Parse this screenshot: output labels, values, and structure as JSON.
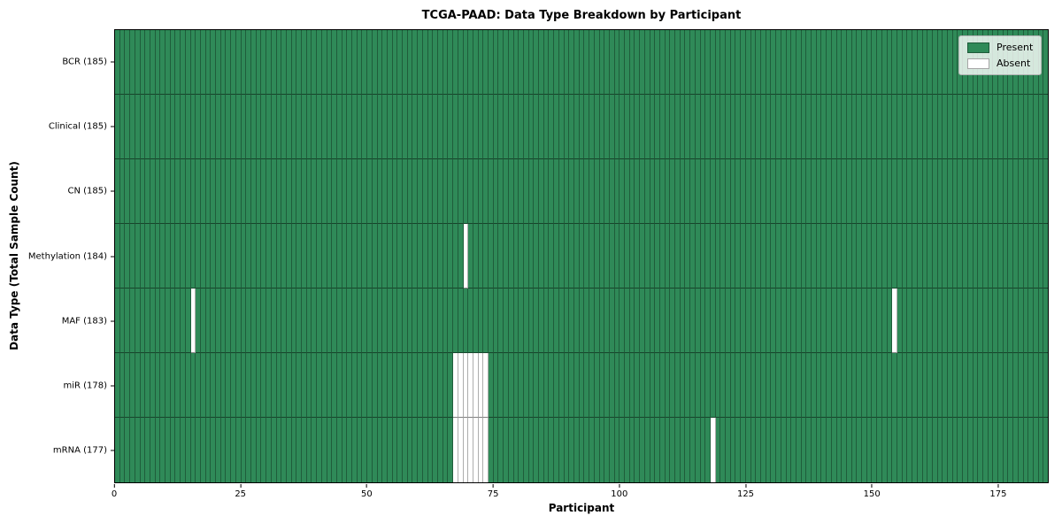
{
  "chart_data": {
    "type": "heatmap",
    "title": "TCGA-PAAD: Data Type Breakdown by Participant",
    "xlabel": "Participant",
    "ylabel": "Data Type (Total Sample Count)",
    "x_max": 185,
    "x_ticks": [
      0,
      25,
      50,
      75,
      100,
      125,
      150,
      175
    ],
    "n_participants": 185,
    "legend": {
      "present": "Present",
      "absent": "Absent"
    },
    "colors": {
      "present": "#2f8a58",
      "absent": "#ffffff"
    },
    "rows": [
      {
        "label": "BCR (185)",
        "data_type": "BCR",
        "present_count": 185,
        "missing_participants": []
      },
      {
        "label": "Clinical (185)",
        "data_type": "Clinical",
        "present_count": 185,
        "missing_participants": []
      },
      {
        "label": "CN (185)",
        "data_type": "CN",
        "present_count": 185,
        "missing_participants": []
      },
      {
        "label": "Methylation (184)",
        "data_type": "Methylation",
        "present_count": 184,
        "missing_participants": [
          69
        ]
      },
      {
        "label": "MAF (183)",
        "data_type": "MAF",
        "present_count": 183,
        "missing_participants": [
          15,
          154
        ]
      },
      {
        "label": "miR (178)",
        "data_type": "miR",
        "present_count": 178,
        "missing_participants": [
          67,
          68,
          69,
          70,
          71,
          72,
          73
        ]
      },
      {
        "label": "mRNA (177)",
        "data_type": "mRNA",
        "present_count": 177,
        "missing_participants": [
          67,
          68,
          69,
          70,
          71,
          72,
          73,
          118
        ]
      }
    ]
  }
}
